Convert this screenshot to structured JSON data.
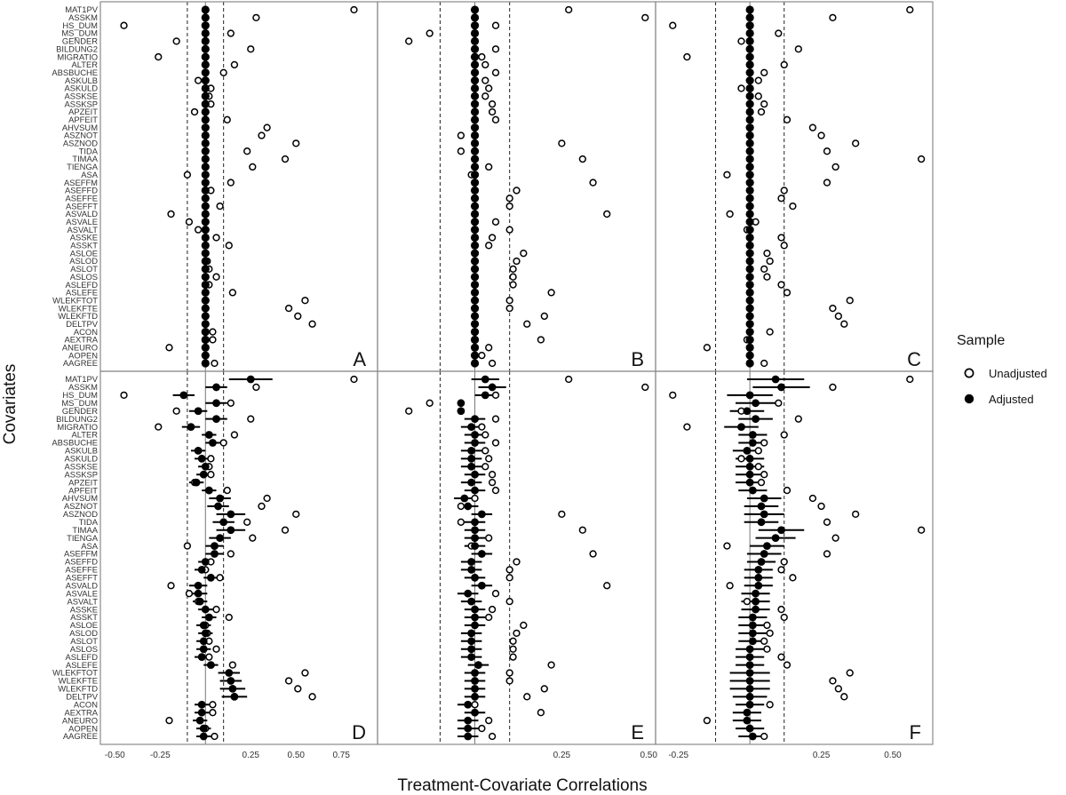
{
  "chart_data": {
    "type": "scatter",
    "xlabel": "Treatment-Covariate Correlations",
    "ylabel": "Covariates",
    "covariates": [
      "MAT1PV",
      "ASSKM",
      "HS_DUM",
      "MS_DUM",
      "GENDER",
      "BILDUNG2",
      "MIGRATIO",
      "ALTER",
      "ABSBUCHE",
      "ASKULB",
      "ASKULD",
      "ASSKSE",
      "ASSKSP",
      "APZEIT",
      "APFEIT",
      "AHVSUM",
      "ASZNOT",
      "ASZNOD",
      "TIDA",
      "TIMAA",
      "TIENGA",
      "ASA",
      "ASEFFM",
      "ASEFFD",
      "ASEFFE",
      "ASEFFT",
      "ASVALD",
      "ASVALE",
      "ASVALT",
      "ASSKE",
      "ASSKT",
      "ASLOE",
      "ASLOD",
      "ASLOT",
      "ASLOS",
      "ASLEFD",
      "ASLEFE",
      "WLEKFTOT",
      "WLEKFTE",
      "WLEKFTD",
      "DELTPV",
      "ACON",
      "AEXTRA",
      "ANEURO",
      "AOPEN",
      "AAGREE"
    ],
    "legend": {
      "title": "Sample",
      "entries": [
        {
          "label": "Unadjusted",
          "marker": "open-circle"
        },
        {
          "label": "Adjusted",
          "marker": "filled-circle"
        }
      ]
    },
    "panels": [
      {
        "letter": "A",
        "xlim": [
          -0.58,
          0.95
        ],
        "ticks": [],
        "ref_line": 0,
        "threshold": 0.1,
        "unadjusted": [
          0.82,
          0.28,
          -0.45,
          0.14,
          -0.16,
          0.25,
          -0.26,
          0.16,
          0.1,
          -0.04,
          0.03,
          0.02,
          0.03,
          -0.06,
          0.12,
          0.34,
          0.31,
          0.5,
          0.23,
          0.44,
          0.26,
          -0.1,
          0.14,
          0.03,
          0.0,
          0.08,
          -0.19,
          -0.09,
          -0.04,
          0.06,
          0.13,
          0.0,
          0.01,
          0.02,
          0.06,
          0.02,
          0.15,
          0.55,
          0.46,
          0.51,
          0.59,
          0.04,
          0.04,
          -0.2,
          0.0,
          0.05
        ],
        "adjusted": [
          0,
          0,
          0,
          0,
          0,
          0,
          0,
          0,
          0,
          0,
          0,
          0,
          0,
          0,
          0,
          0,
          0,
          0,
          0,
          0,
          0,
          0,
          0,
          0,
          0,
          0,
          0,
          0,
          0,
          0,
          0,
          0,
          0,
          0,
          0,
          0,
          0,
          0,
          0,
          0,
          0,
          0,
          0,
          0,
          0,
          0
        ]
      },
      {
        "letter": "B",
        "xlim": [
          -0.28,
          0.52
        ],
        "ticks": [],
        "ref_line": 0,
        "threshold": 0.1,
        "unadjusted": [
          0.27,
          0.49,
          0.06,
          -0.13,
          -0.19,
          0.06,
          0.02,
          0.03,
          0.06,
          0.03,
          0.04,
          0.03,
          0.05,
          0.05,
          0.06,
          0.0,
          -0.04,
          0.25,
          -0.04,
          0.31,
          0.04,
          -0.01,
          0.34,
          0.12,
          0.1,
          0.1,
          0.38,
          0.06,
          0.1,
          0.05,
          0.04,
          0.14,
          0.12,
          0.11,
          0.11,
          0.11,
          0.22,
          0.1,
          0.1,
          0.2,
          0.15,
          0.0,
          0.19,
          0.04,
          0.02,
          0.05
        ],
        "adjusted": [
          0,
          0,
          0,
          0,
          0,
          0,
          0,
          0,
          0,
          0,
          0,
          0,
          0,
          0,
          0,
          0,
          0,
          0,
          0,
          0,
          0,
          0,
          0,
          0,
          0,
          0,
          0,
          0,
          0,
          0,
          0,
          0,
          0,
          0,
          0,
          0,
          0,
          0,
          0,
          0,
          0,
          0,
          0,
          0,
          0,
          0
        ]
      },
      {
        "letter": "C",
        "xlim": [
          -0.33,
          0.64
        ],
        "ticks": [],
        "ref_line": 0,
        "threshold": 0.12,
        "unadjusted": [
          0.56,
          0.29,
          -0.27,
          0.1,
          -0.03,
          0.17,
          -0.22,
          0.12,
          0.05,
          0.03,
          -0.03,
          0.03,
          0.05,
          0.04,
          0.13,
          0.22,
          0.25,
          0.37,
          0.27,
          0.6,
          0.3,
          -0.08,
          0.27,
          0.12,
          0.11,
          0.15,
          -0.07,
          0.02,
          -0.01,
          0.11,
          0.12,
          0.06,
          0.07,
          0.05,
          0.06,
          0.11,
          0.13,
          0.35,
          0.29,
          0.31,
          0.33,
          0.07,
          -0.01,
          -0.15,
          0.0,
          0.05
        ],
        "adjusted": [
          0,
          0,
          0,
          0,
          0,
          0,
          0,
          0,
          0,
          0,
          0,
          0,
          0,
          0,
          0,
          0,
          0,
          0,
          0,
          0,
          0,
          0,
          0,
          0,
          0,
          0,
          0,
          0,
          0,
          0,
          0,
          0,
          0,
          0,
          0,
          0,
          0,
          0,
          0,
          0,
          0,
          0,
          0,
          0,
          0,
          0
        ]
      },
      {
        "letter": "D",
        "xlim": [
          -0.58,
          0.95
        ],
        "ticks": [
          -0.5,
          -0.25,
          0.25,
          0.5,
          0.75
        ],
        "ref_line": 0,
        "threshold": 0.1,
        "unadjusted": [
          0.82,
          0.28,
          -0.45,
          0.14,
          -0.16,
          0.25,
          -0.26,
          0.16,
          0.1,
          -0.04,
          0.03,
          0.02,
          0.03,
          -0.06,
          0.12,
          0.34,
          0.31,
          0.5,
          0.23,
          0.44,
          0.26,
          -0.1,
          0.14,
          0.03,
          0.0,
          0.08,
          -0.19,
          -0.09,
          -0.04,
          0.06,
          0.13,
          0.0,
          0.01,
          0.02,
          0.06,
          0.02,
          0.15,
          0.55,
          0.46,
          0.51,
          0.59,
          0.04,
          0.04,
          -0.2,
          0.0,
          0.05
        ],
        "adjusted": [
          0.25,
          0.06,
          -0.12,
          0.06,
          -0.04,
          0.06,
          -0.08,
          0.02,
          0.04,
          -0.04,
          -0.02,
          0.0,
          -0.01,
          -0.05,
          0.02,
          0.08,
          0.07,
          0.14,
          0.1,
          0.14,
          0.08,
          0.05,
          0.05,
          0.0,
          -0.02,
          0.03,
          -0.04,
          -0.04,
          -0.03,
          0.0,
          0.02,
          -0.01,
          0.0,
          -0.01,
          -0.01,
          -0.02,
          0.03,
          0.13,
          0.14,
          0.15,
          0.16,
          -0.02,
          -0.02,
          -0.03,
          -0.01,
          -0.01
        ],
        "ci_halfwidth": [
          0.12,
          0.06,
          0.06,
          0.06,
          0.05,
          0.06,
          0.05,
          0.04,
          0.04,
          0.04,
          0.04,
          0.04,
          0.04,
          0.04,
          0.04,
          0.06,
          0.06,
          0.08,
          0.06,
          0.08,
          0.06,
          0.05,
          0.05,
          0.04,
          0.04,
          0.04,
          0.05,
          0.05,
          0.04,
          0.04,
          0.04,
          0.04,
          0.04,
          0.04,
          0.04,
          0.04,
          0.04,
          0.06,
          0.06,
          0.07,
          0.07,
          0.04,
          0.04,
          0.04,
          0.04,
          0.04
        ]
      },
      {
        "letter": "E",
        "xlim": [
          -0.28,
          0.52
        ],
        "ticks": [
          0.25,
          0.5
        ],
        "ref_line": 0,
        "threshold": 0.1,
        "unadjusted": [
          0.27,
          0.49,
          0.06,
          -0.13,
          -0.19,
          0.06,
          0.02,
          0.03,
          0.06,
          0.03,
          0.04,
          0.03,
          0.05,
          0.05,
          0.06,
          0.0,
          -0.04,
          0.25,
          -0.04,
          0.31,
          0.04,
          -0.01,
          0.34,
          0.12,
          0.1,
          0.1,
          0.38,
          0.06,
          0.1,
          0.05,
          0.04,
          0.14,
          0.12,
          0.11,
          0.11,
          0.11,
          0.22,
          0.1,
          0.1,
          0.2,
          0.15,
          0.0,
          0.19,
          0.04,
          0.02,
          0.05
        ],
        "adjusted": [
          0.03,
          0.05,
          0.03,
          -0.04,
          -0.04,
          0.0,
          -0.01,
          0.0,
          0.0,
          -0.01,
          -0.01,
          -0.01,
          0.0,
          -0.01,
          0.0,
          -0.03,
          -0.02,
          0.02,
          0.0,
          0.0,
          0.0,
          0.0,
          0.02,
          -0.01,
          -0.01,
          0.0,
          0.02,
          -0.02,
          -0.01,
          0.0,
          0.0,
          0.0,
          -0.01,
          -0.01,
          -0.01,
          -0.01,
          0.01,
          0.0,
          0.0,
          0.0,
          0.0,
          -0.02,
          0.0,
          -0.02,
          -0.02,
          -0.02
        ],
        "ci_halfwidth": [
          0.04,
          0.04,
          0.03,
          0.01,
          0.01,
          0.03,
          0.03,
          0.03,
          0.03,
          0.03,
          0.03,
          0.03,
          0.03,
          0.03,
          0.03,
          0.03,
          0.03,
          0.03,
          0.03,
          0.03,
          0.03,
          0.03,
          0.03,
          0.03,
          0.03,
          0.03,
          0.03,
          0.03,
          0.03,
          0.03,
          0.03,
          0.03,
          0.03,
          0.03,
          0.03,
          0.03,
          0.03,
          0.03,
          0.03,
          0.03,
          0.03,
          0.03,
          0.03,
          0.03,
          0.03,
          0.03
        ]
      },
      {
        "letter": "F",
        "xlim": [
          -0.33,
          0.64
        ],
        "ticks": [
          -0.25,
          0.25,
          0.5
        ],
        "ref_line": 0,
        "threshold": 0.12,
        "unadjusted": [
          0.56,
          0.29,
          -0.27,
          0.1,
          -0.03,
          0.17,
          -0.22,
          0.12,
          0.05,
          0.03,
          -0.03,
          0.03,
          0.05,
          0.04,
          0.13,
          0.22,
          0.25,
          0.37,
          0.27,
          0.6,
          0.3,
          -0.08,
          0.27,
          0.12,
          0.11,
          0.15,
          -0.07,
          0.02,
          -0.01,
          0.11,
          0.12,
          0.06,
          0.07,
          0.05,
          0.06,
          0.11,
          0.13,
          0.35,
          0.29,
          0.31,
          0.33,
          0.07,
          -0.01,
          -0.15,
          0.0,
          0.05
        ],
        "adjusted": [
          0.09,
          0.11,
          0.0,
          0.02,
          -0.01,
          0.02,
          -0.03,
          0.01,
          0.01,
          -0.01,
          0.0,
          0.0,
          0.0,
          0.0,
          0.01,
          0.05,
          0.04,
          0.05,
          0.04,
          0.11,
          0.09,
          0.06,
          0.05,
          0.04,
          0.03,
          0.03,
          0.03,
          0.02,
          0.02,
          0.02,
          0.01,
          0.01,
          0.01,
          0.01,
          0.0,
          0.0,
          0.0,
          0.0,
          0.0,
          0.0,
          0.0,
          0.0,
          -0.01,
          -0.01,
          0.0,
          0.01
        ],
        "ci_halfwidth": [
          0.1,
          0.1,
          0.08,
          0.07,
          0.06,
          0.06,
          0.06,
          0.05,
          0.05,
          0.05,
          0.05,
          0.05,
          0.05,
          0.05,
          0.05,
          0.06,
          0.06,
          0.07,
          0.06,
          0.08,
          0.07,
          0.06,
          0.06,
          0.05,
          0.05,
          0.05,
          0.05,
          0.05,
          0.05,
          0.05,
          0.05,
          0.05,
          0.05,
          0.05,
          0.05,
          0.05,
          0.05,
          0.07,
          0.07,
          0.07,
          0.06,
          0.05,
          0.05,
          0.05,
          0.05,
          0.05
        ]
      }
    ]
  }
}
